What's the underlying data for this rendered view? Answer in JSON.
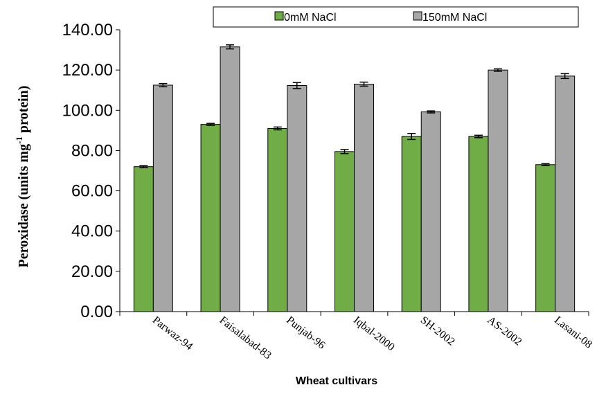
{
  "chart_data": {
    "type": "bar",
    "title": "",
    "xlabel": "Wheat cultivars",
    "ylabel": {
      "prefix": "Peroxidase (units mg",
      "superscript": "-1",
      "suffix": " protein)"
    },
    "ylim": [
      0,
      140
    ],
    "yticks": [
      "0.00",
      "20.00",
      "40.00",
      "60.00",
      "80.00",
      "100.00",
      "120.00",
      "140.00"
    ],
    "ytick_values": [
      0,
      20,
      40,
      60,
      80,
      100,
      120,
      140
    ],
    "categories": [
      "Parwaz-94",
      "Faisalabad-83",
      "Punjab-96",
      "Iqbal-2000",
      "SH-2002",
      "AS-2002",
      "Lasani-08"
    ],
    "series": [
      {
        "name": "0mM NaCl",
        "color": "#70ad47",
        "values": [
          72,
          93,
          91,
          79.5,
          87,
          87,
          73
        ],
        "errors": [
          0.5,
          0.5,
          0.7,
          1.0,
          1.5,
          0.6,
          0.5
        ]
      },
      {
        "name": "150mM NaCl",
        "color": "#a6a6a6",
        "values": [
          112.5,
          131.5,
          112.3,
          113,
          99.2,
          120,
          117
        ],
        "errors": [
          0.8,
          1.0,
          1.5,
          1.0,
          0.5,
          0.6,
          1.2
        ]
      }
    ],
    "legend_position": "top",
    "grid": false
  }
}
